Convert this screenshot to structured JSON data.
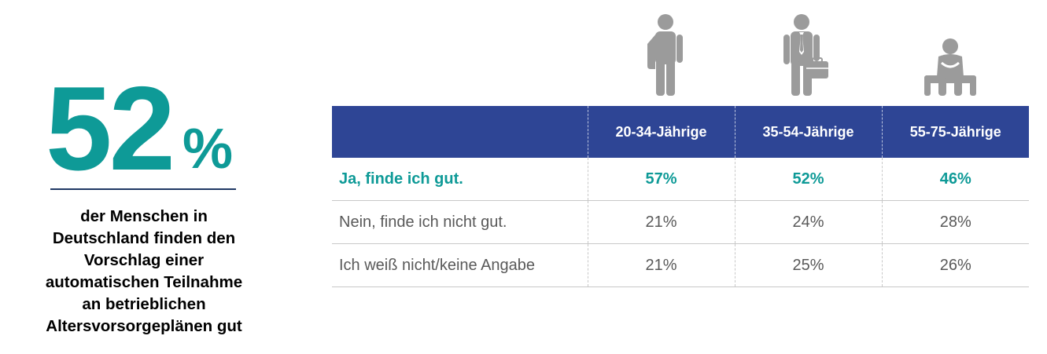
{
  "stat": {
    "number": "52",
    "percent": "%",
    "description": "der Menschen in\nDeutschland finden den\nVorschlag einer\nautomatischen Teilnahme\nan betrieblichen\nAltersvorsorgeplänen gut"
  },
  "colors": {
    "accent": "#0e9a97",
    "header_bg": "#2e4595",
    "icon": "#9b9b9b",
    "text_gray": "#595959",
    "rule": "#1f3864"
  },
  "icons": [
    {
      "name": "young-person-with-bag-icon"
    },
    {
      "name": "businessman-with-briefcase-icon"
    },
    {
      "name": "seated-older-person-icon"
    }
  ],
  "chart_data": {
    "type": "table",
    "columns": [
      "",
      "20-34-Jährige",
      "35-54-Jährige",
      "55-75-Jährige"
    ],
    "rows": [
      {
        "label": "Ja, finde ich gut.",
        "values": [
          "57%",
          "52%",
          "46%"
        ],
        "highlight": true
      },
      {
        "label": "Nein, finde ich nicht gut.",
        "values": [
          "21%",
          "24%",
          "28%"
        ],
        "highlight": false
      },
      {
        "label": "Ich weiß nicht/keine Angabe",
        "values": [
          "21%",
          "25%",
          "26%"
        ],
        "highlight": false
      }
    ]
  }
}
